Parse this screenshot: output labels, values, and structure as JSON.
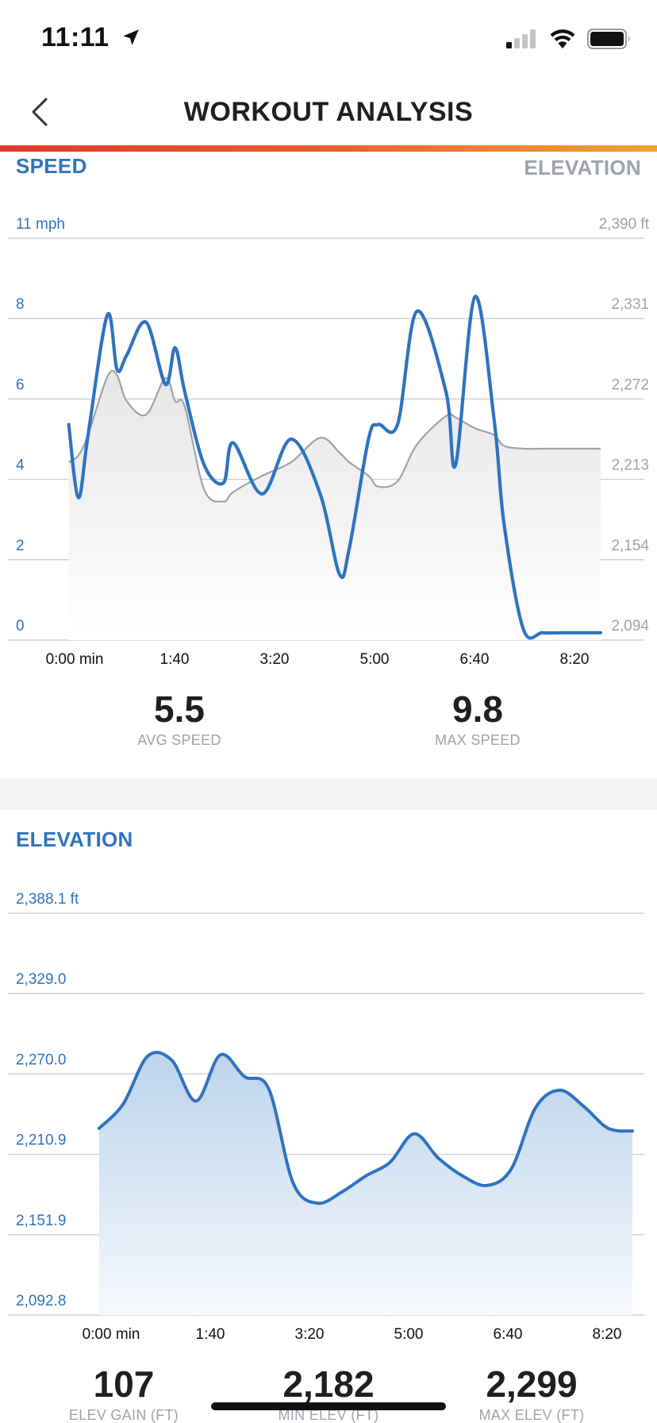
{
  "status_bar": {
    "time": "11:11"
  },
  "nav": {
    "title": "WORKOUT ANALYSIS"
  },
  "speed_section": {
    "left_label": "SPEED",
    "right_label": "ELEVATION",
    "left_ticks": [
      "11 mph",
      "8",
      "6",
      "4",
      "2",
      "0"
    ],
    "right_ticks": [
      "2,390 ft",
      "2,331",
      "2,272",
      "2,213",
      "2,154",
      "2,094"
    ],
    "x_ticks": [
      "0:00 min",
      "1:40",
      "3:20",
      "5:00",
      "6:40",
      "8:20"
    ],
    "stats": [
      {
        "value": "5.5",
        "label": "AVG SPEED"
      },
      {
        "value": "9.8",
        "label": "MAX SPEED"
      }
    ]
  },
  "elevation_section": {
    "label": "ELEVATION",
    "y_ticks": [
      "2,388.1 ft",
      "2,329.0",
      "2,270.0",
      "2,210.9",
      "2,151.9",
      "2,092.8"
    ],
    "x_ticks": [
      "0:00 min",
      "1:40",
      "3:20",
      "5:00",
      "6:40",
      "8:20"
    ],
    "stats": [
      {
        "value": "107",
        "label": "ELEV GAIN (FT)"
      },
      {
        "value": "2,182",
        "label": "MIN ELEV (FT)"
      },
      {
        "value": "2,299",
        "label": "MAX ELEV (FT)"
      }
    ]
  },
  "chart_data": [
    {
      "type": "line",
      "title": "SPEED",
      "xlabel": "",
      "ylabel": "",
      "x": [
        0,
        10,
        20,
        40,
        50,
        60,
        80,
        100,
        110,
        120,
        140,
        160,
        170,
        200,
        230,
        260,
        280,
        290,
        310,
        320,
        340,
        360,
        390,
        400,
        420,
        440,
        450,
        470,
        490,
        510,
        520,
        540,
        550
      ],
      "xlim": [
        -30,
        550
      ],
      "series": [
        {
          "name": "",
          "color": "#2e73c0",
          "values": [
            5.9,
            3.9,
            5.6,
            8.9,
            7.4,
            7.8,
            8.7,
            7.0,
            8.0,
            6.8,
            4.8,
            4.3,
            5.4,
            4.0,
            5.5,
            4.0,
            1.8,
            2.5,
            5.5,
            5.9,
            5.9,
            9.0,
            6.8,
            4.8,
            9.4,
            6.0,
            3.2,
            0.3,
            0.2,
            0.2,
            0.2,
            0.2,
            0.2
          ],
          "axis": "left"
        },
        {
          "name": "",
          "color": "#9ea3ab",
          "values": [
            2225,
            2230,
            2245,
            2288,
            2289,
            2270,
            2260,
            2287,
            2270,
            2266,
            2205,
            2196,
            2203,
            2215,
            2225,
            2243,
            2232,
            2225,
            2215,
            2207,
            2211,
            2238,
            2259,
            2258,
            2250,
            2245,
            2237,
            2235,
            2235,
            2235,
            2235,
            2235,
            2235
          ],
          "axis": "right"
        }
      ],
      "ylim_left": [
        0,
        11
      ],
      "ylim_right": [
        2094,
        2390
      ],
      "grid": true
    },
    {
      "type": "area",
      "title": "ELEVATION",
      "xlabel": "",
      "ylabel": "",
      "x": [
        0,
        25,
        50,
        75,
        100,
        125,
        150,
        175,
        200,
        225,
        250,
        275,
        300,
        325,
        350,
        375,
        400,
        425,
        450,
        475,
        500,
        525,
        550
      ],
      "xlim": [
        -22,
        550
      ],
      "series": [
        {
          "name": "",
          "color": "#2e73c0",
          "values": [
            2230,
            2248,
            2283,
            2280,
            2250,
            2284,
            2268,
            2259,
            2190,
            2175,
            2183,
            2195,
            2205,
            2226,
            2208,
            2195,
            2188,
            2200,
            2245,
            2258,
            2246,
            2230,
            2228
          ]
        }
      ],
      "ylim": [
        2092.8,
        2388.1
      ],
      "grid": true
    }
  ]
}
